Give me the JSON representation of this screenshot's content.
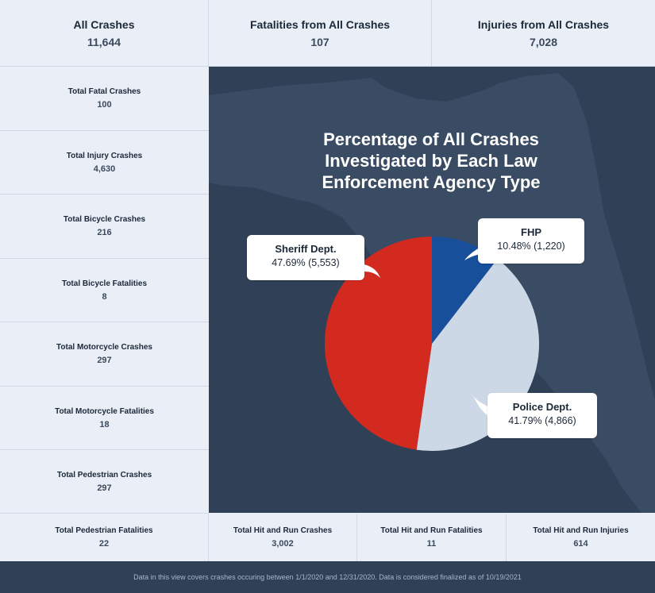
{
  "top_stats": [
    {
      "label": "All Crashes",
      "value": "11,644"
    },
    {
      "label": "Fatalities from All Crashes",
      "value": "107"
    },
    {
      "label": "Injuries from All Crashes",
      "value": "7,028"
    }
  ],
  "side_stats": [
    {
      "label": "Total Fatal Crashes",
      "value": "100"
    },
    {
      "label": "Total Injury Crashes",
      "value": "4,630"
    },
    {
      "label": "Total Bicycle Crashes",
      "value": "216"
    },
    {
      "label": "Total Bicycle Fatalities",
      "value": "8"
    },
    {
      "label": "Total Motorcycle Crashes",
      "value": "297"
    },
    {
      "label": "Total Motorcycle Fatalities",
      "value": "18"
    },
    {
      "label": "Total Pedestrian Crashes",
      "value": "297"
    }
  ],
  "bottom_stats": [
    {
      "label": "Total Pedestrian Fatalities",
      "value": "22"
    },
    {
      "label": "Total Hit and Run Crashes",
      "value": "3,002"
    },
    {
      "label": "Total Hit and Run Fatalities",
      "value": "11"
    },
    {
      "label": "Total Hit and Run Injuries",
      "value": "614"
    }
  ],
  "chart_data": {
    "type": "pie",
    "title_lines": [
      "Percentage of All Crashes",
      "Investigated by Each Law",
      "Enforcement Agency Type"
    ],
    "slices": [
      {
        "name": "FHP",
        "label": "10.48% (1,220)",
        "percent": 10.48,
        "count": 1220,
        "color": "#184f9a"
      },
      {
        "name": "Police Dept.",
        "label": "41.79% (4,866)",
        "percent": 41.79,
        "count": 4866,
        "color": "#cdd8e6"
      },
      {
        "name": "Sheriff Dept.",
        "label": "47.69% (5,553)",
        "percent": 47.69,
        "count": 5553,
        "color": "#d32a1f"
      }
    ]
  },
  "footer": {
    "note": "Data in this view covers crashes occuring between 1/1/2020 and 12/31/2020. Data is considered finalized as of 10/19/2021"
  }
}
